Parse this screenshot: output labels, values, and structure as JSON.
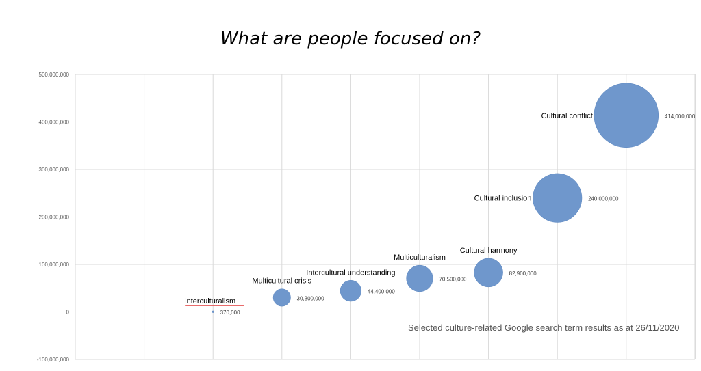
{
  "chart_data": {
    "type": "bubble",
    "title": "What are people focused on?",
    "xlabel": "",
    "ylabel": "",
    "ylim": [
      -100000000,
      500000000
    ],
    "yticks": [
      "500,000,000",
      "400,000,000",
      "300,000,000",
      "200,000,000",
      "100,000,000",
      "0",
      "-100,000,000"
    ],
    "ytick_values": [
      500000000,
      400000000,
      300000000,
      200000000,
      100000000,
      0,
      -100000000
    ],
    "grid": true,
    "legend": "none",
    "points": [
      {
        "label": "interculturalism",
        "x": 2,
        "value": 370000,
        "value_label": "370,000"
      },
      {
        "label": "Multicultural crisis",
        "x": 3,
        "value": 30300000,
        "value_label": "30,300,000"
      },
      {
        "label": "Intercultural understanding",
        "x": 4,
        "value": 44400000,
        "value_label": "44,400,000"
      },
      {
        "label": "Multiculturalism",
        "x": 5,
        "value": 70500000,
        "value_label": "70,500,000"
      },
      {
        "label": "Cultural harmony",
        "x": 6,
        "value": 82900000,
        "value_label": "82,900,000"
      },
      {
        "label": "Cultural inclusion",
        "x": 7,
        "value": 240000000,
        "value_label": "240,000,000"
      },
      {
        "label": "Cultural conflict",
        "x": 8,
        "value": 414000000,
        "value_label": "414,000,000"
      }
    ],
    "bubble_color": "#6f97cc",
    "grid_color": "#d9d9d9"
  },
  "footnote": "Selected culture-related Google search term results as at 26/11/2020"
}
